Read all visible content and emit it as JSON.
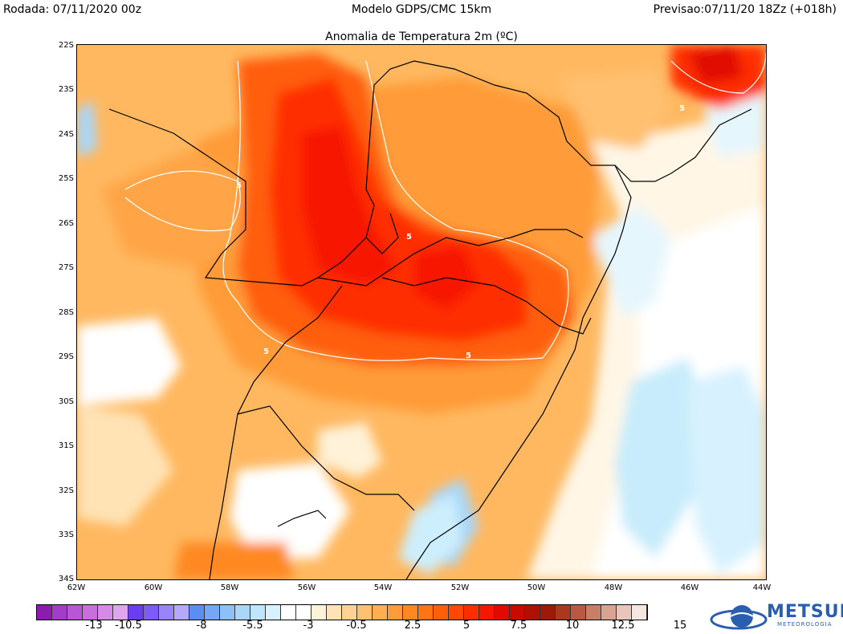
{
  "header": {
    "run": "Rodada: 07/11/2020 00z",
    "model": "Modelo GDPS/CMC 15km",
    "valid": "Previsao:07/11/20 18Zz (+018h)"
  },
  "map": {
    "title": "Anomalia de Temperatura 2m (ºC)",
    "lat_labels": [
      "22S",
      "23S",
      "24S",
      "25S",
      "26S",
      "27S",
      "28S",
      "29S",
      "30S",
      "31S",
      "32S",
      "33S",
      "34S"
    ],
    "lon_labels": [
      "62W",
      "60W",
      "58W",
      "56W",
      "54W",
      "52W",
      "50W",
      "48W",
      "46W",
      "44W"
    ],
    "contour_labels": [
      "5",
      "5",
      "5",
      "5",
      "5"
    ]
  },
  "colorbar": {
    "labels": [
      "-13",
      "-10.5",
      "-8",
      "-5.5",
      "-3",
      "-0.5",
      "2.5",
      "5",
      "7.5",
      "10",
      "12.5",
      "15"
    ],
    "colors": [
      "#8b1cae",
      "#a33cc6",
      "#b757d4",
      "#c66fdd",
      "#d48ae6",
      "#e0a5ef",
      "#6b3df0",
      "#7d5cf5",
      "#9b84f8",
      "#b7a9fa",
      "#5a8ef0",
      "#75a7f5",
      "#8ec0f8",
      "#a8d7fa",
      "#bfe6fc",
      "#d7f2fe",
      "#ffffff",
      "#ffffff",
      "#fff2d8",
      "#ffe3b5",
      "#ffd293",
      "#ffc070",
      "#ffae52",
      "#ff9b38",
      "#ff8823",
      "#ff7414",
      "#ff5f09",
      "#ff4803",
      "#ff2e00",
      "#f71600",
      "#e00a00",
      "#c80a00",
      "#b01000",
      "#9c1a08",
      "#a8381e",
      "#b85a40",
      "#c97e68",
      "#d9a392",
      "#e8c6bb",
      "#f5e6e0"
    ]
  },
  "logo": {
    "name": "METSUL",
    "subtitle": "METEOROLOGIA"
  }
}
